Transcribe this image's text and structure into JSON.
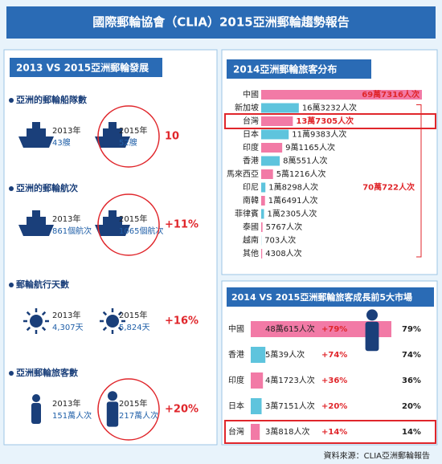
{
  "header": {
    "title": "國際郵輪協會（CLIA）2015亞洲郵輪趨勢報告"
  },
  "left_panel": {
    "title": "2013 VS 2015亞洲郵輪發展",
    "sections": [
      {
        "label": "亞洲的郵輪船隊數",
        "before": "2013年",
        "before_value": "43艘",
        "after": "2015年",
        "after_value": "52艘",
        "change": "10"
      },
      {
        "label": "亞洲的郵輪航次",
        "before": "2013年",
        "before_value": "861個航次",
        "after": "2015年",
        "after_value": "1065個航次",
        "change": "+11%"
      },
      {
        "label": "郵輪航行天數",
        "before": "2013年",
        "before_value": "4,307天",
        "after": "2015年",
        "after_value": "5,824天",
        "change": "+16%"
      },
      {
        "label": "亞洲郵輪旅客數",
        "before": "2013年",
        "before_value": "151萬人次",
        "after": "2015年",
        "after_value": "217萬人次",
        "change": "+20%"
      }
    ]
  },
  "chart_data": [
    {
      "type": "hbar",
      "title": "2014亞洲郵輪旅客分布",
      "categories": [
        "中國",
        "新加坡",
        "台灣",
        "日本",
        "印度",
        "香港",
        "馬來西亞",
        "印尼",
        "南韓",
        "菲律賓",
        "泰國",
        "越南",
        "其他"
      ],
      "values": [
        697316,
        163232,
        137305,
        119383,
        91165,
        80551,
        51216,
        18298,
        16491,
        12305,
        5767,
        703,
        4308
      ],
      "value_labels": [
        "69萬7316人次",
        "16萬3232人次",
        "13萬7305人次",
        "11萬9383人次",
        "9萬1165人次",
        "8萬551人次",
        "5萬1216人次",
        "1萬8298人次",
        "1萬6491人次",
        "1萬2305人次",
        "5767人次",
        "703人次",
        "4308人次"
      ],
      "colors": [
        "#f27aa6",
        "#5ec4dd"
      ],
      "highlight_index": 2,
      "annotation": "70萬722人次"
    },
    {
      "type": "hbar",
      "title": "2014 VS 2015亞洲郵輪旅客成長前5大市場",
      "categories": [
        "中國",
        "香港",
        "印度",
        "日本",
        "台灣"
      ],
      "values": [
        480615,
        50039,
        41723,
        37151,
        30818
      ],
      "value_labels": [
        "48萬615人次",
        "5萬39人次",
        "4萬1723人次",
        "3萬7151人次",
        "3萬818人次"
      ],
      "growth": {
        "values": [
          79,
          74,
          36,
          20,
          14
        ],
        "labels": [
          "+79%",
          "+74%",
          "+36%",
          "+20%",
          "+14%"
        ],
        "column_labels": [
          "79%",
          "74%",
          "36%",
          "20%",
          "14%"
        ]
      },
      "colors": [
        "#f27aa6",
        "#5ec4dd"
      ],
      "highlight_index": 4
    }
  ],
  "source": "資料來源：CLIA亞洲郵輪報告"
}
